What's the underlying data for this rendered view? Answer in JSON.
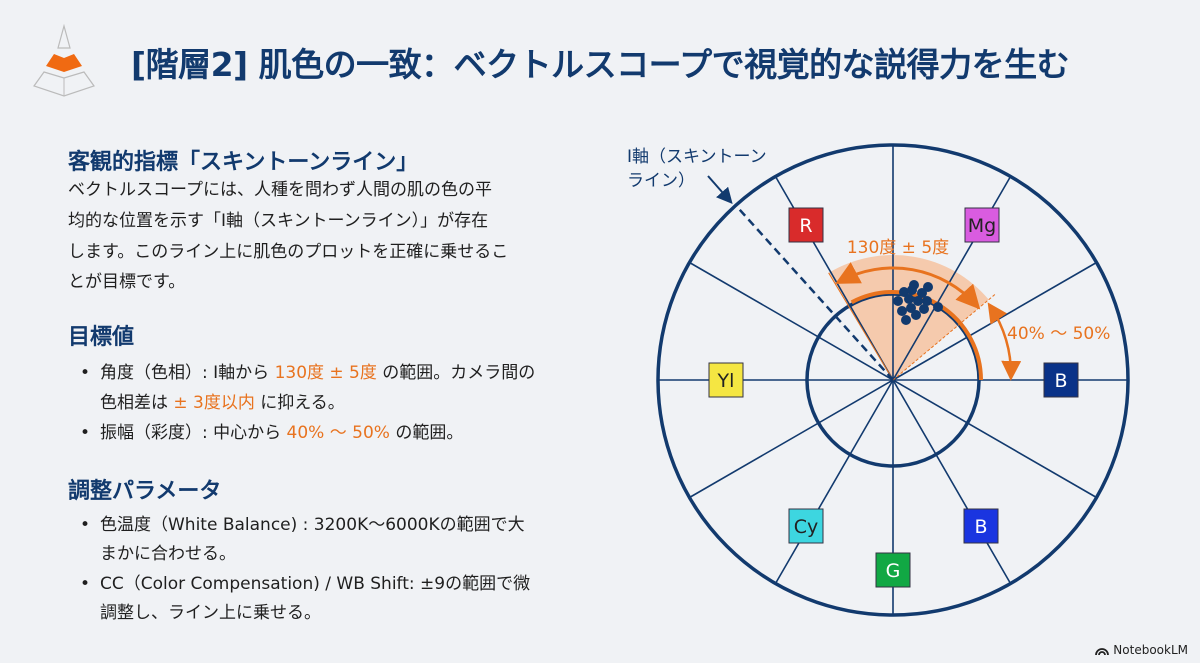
{
  "header": {
    "title": "[階層2] 肌色の一致：ベクトルスコープで視覚的な説得力を生む",
    "logo_icon": "pyramid-icon"
  },
  "section1": {
    "heading": "客観的指標「スキントーンライン」",
    "lines": [
      "ベクトルスコープには、人種を問わず人間の肌の色の平",
      "均的な位置を示す「I軸（スキントーンライン）」が存在",
      "します。このライン上に肌色のプロットを正確に乗せるこ",
      "とが目標です。"
    ]
  },
  "section2": {
    "heading": "目標値",
    "b1_l1_a": "角度（色相）: I軸から ",
    "b1_l1_hl": "130度 ± 5度",
    "b1_l1_b": " の範囲。カメラ間の",
    "b1_l2_a": "色相差は ",
    "b1_l2_hl": "± 3度以内",
    "b1_l2_b": " に抑える。",
    "b2_a": "振幅（彩度）: 中心から ",
    "b2_hl": "40% ～ 50%",
    "b2_b": " の範囲。"
  },
  "section3": {
    "heading": "調整パラメータ",
    "b1_l1": "色温度（White Balance) : 3200K～6000Kの範囲で大",
    "b1_l2": "まかに合わせる。",
    "b2_l1": "CC（Color Compensation) / WB Shift: ±9の範囲で微",
    "b2_l2": "調整し、ライン上に乗せる。"
  },
  "scope": {
    "i_axis_label_l1": "I軸（スキントーン",
    "i_axis_label_l2": "ライン）",
    "angle_label": "130度 ± 5度",
    "amplitude_label": "40% ～ 50%",
    "colors": {
      "line": "#123a6e",
      "accent": "#e8731f",
      "sector_fill": "#f6c3a0",
      "dots": "#123a6e"
    },
    "targets": [
      {
        "label": "R",
        "fill": "#d92b2b",
        "text": "#ffffff"
      },
      {
        "label": "Mg",
        "fill": "#d95ce0",
        "text": "#222222"
      },
      {
        "label": "Yl",
        "fill": "#f5e642",
        "text": "#222222"
      },
      {
        "label": "B",
        "fill": "#0a3288",
        "text": "#ffffff"
      },
      {
        "label": "Cy",
        "fill": "#3dd6e0",
        "text": "#222222"
      },
      {
        "label": "G",
        "fill": "#11a844",
        "text": "#ffffff"
      },
      {
        "label": "B",
        "fill": "#1a35e0",
        "text": "#ffffff"
      }
    ]
  },
  "footer": {
    "brand": "NotebookLM",
    "brand_icon": "notebooklm-icon"
  }
}
